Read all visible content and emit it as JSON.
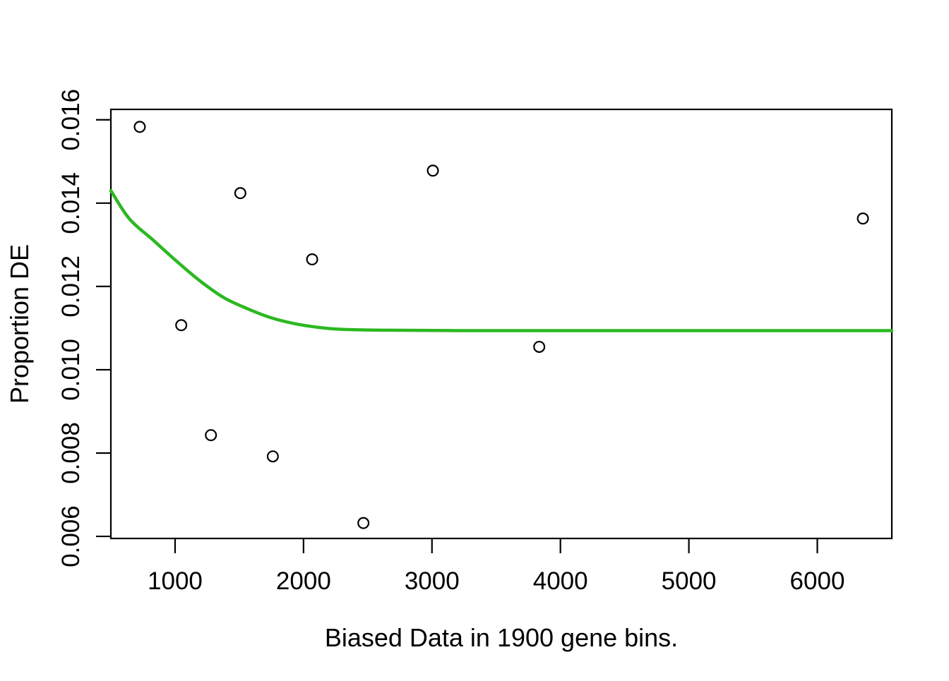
{
  "figure": {
    "background": "#ffffff",
    "axis_color": "#000000",
    "point_color": "#000000",
    "trend_color": "#2cb820"
  },
  "chart_data": {
    "type": "scatter",
    "title": "",
    "xlabel": "Biased Data in 1900 gene bins.",
    "ylabel": "Proportion DE",
    "xlim": [
      500,
      6580
    ],
    "ylim": [
      0.00595,
      0.01625
    ],
    "grid": false,
    "legend": "none",
    "x_ticks": [
      1000,
      2000,
      3000,
      4000,
      5000,
      6000
    ],
    "x_tick_labels": [
      "1000",
      "2000",
      "3000",
      "4000",
      "5000",
      "6000"
    ],
    "y_ticks": [
      0.006,
      0.008,
      0.01,
      0.012,
      0.014,
      0.016
    ],
    "y_tick_labels": [
      "0.006",
      "0.008",
      "0.010",
      "0.012",
      "0.014",
      "0.016"
    ],
    "marker": "open-circle",
    "points": [
      {
        "x": 725,
        "y": 0.01583
      },
      {
        "x": 1048,
        "y": 0.01107
      },
      {
        "x": 1279,
        "y": 0.00843
      },
      {
        "x": 1508,
        "y": 0.01424
      },
      {
        "x": 1761,
        "y": 0.00792
      },
      {
        "x": 2067,
        "y": 0.01265
      },
      {
        "x": 2466,
        "y": 0.00632
      },
      {
        "x": 3007,
        "y": 0.01478
      },
      {
        "x": 3835,
        "y": 0.01055
      },
      {
        "x": 6355,
        "y": 0.01363
      }
    ],
    "trend_line": {
      "name": "fitted-curve",
      "color": "#2cb820",
      "flat_level": 0.01094,
      "points": [
        {
          "x": 500,
          "y": 0.0143
        },
        {
          "x": 645,
          "y": 0.01362
        },
        {
          "x": 830,
          "y": 0.01311
        },
        {
          "x": 1010,
          "y": 0.01261
        },
        {
          "x": 1195,
          "y": 0.01213
        },
        {
          "x": 1380,
          "y": 0.01173
        },
        {
          "x": 1560,
          "y": 0.01147
        },
        {
          "x": 1745,
          "y": 0.01125
        },
        {
          "x": 1925,
          "y": 0.01111
        },
        {
          "x": 2110,
          "y": 0.01102
        },
        {
          "x": 2295,
          "y": 0.01097
        },
        {
          "x": 2600,
          "y": 0.01095
        },
        {
          "x": 3200,
          "y": 0.01094
        },
        {
          "x": 4500,
          "y": 0.01094
        },
        {
          "x": 6580,
          "y": 0.01094
        }
      ]
    }
  }
}
